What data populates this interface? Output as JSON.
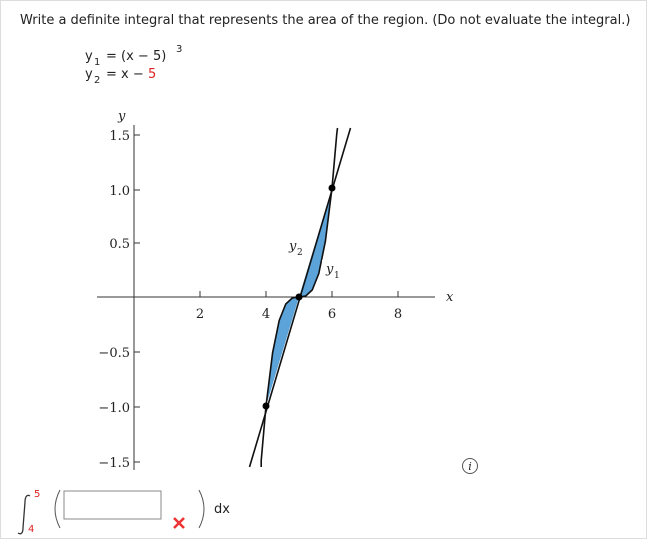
{
  "question": "Write a definite integral that represents the area of the region. (Do not evaluate the integral.)",
  "equations": [
    {
      "name": "y",
      "sub": "1",
      "rhs": "= (x − 5)",
      "sup": "3"
    },
    {
      "name": "y",
      "sub": "2",
      "rhs": "= x −",
      "constant": "5"
    }
  ],
  "graph": {
    "y_axis_label": "y",
    "x_axis_label": "x",
    "y_tick_labels": [
      "1.5",
      "1.0",
      "0.5",
      "−0.5",
      "−1.0",
      "−1.5"
    ],
    "x_tick_labels": [
      "2",
      "4",
      "6",
      "8"
    ],
    "curve_labels": [
      {
        "name": "y",
        "sub": "2"
      },
      {
        "name": "y",
        "sub": "1"
      }
    ]
  },
  "answer": {
    "upper_limit": "5",
    "lower_limit": "4",
    "differential": "dx"
  }
}
